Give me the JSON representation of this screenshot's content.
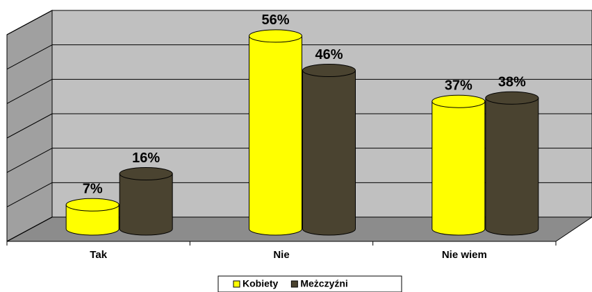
{
  "chart_data": {
    "type": "bar3d",
    "categories": [
      "Tak",
      "Nie",
      "Nie wiem"
    ],
    "series": [
      {
        "name": "Kobiety",
        "color": "#ffff00",
        "values": [
          7,
          56,
          37
        ],
        "value_labels": [
          "7%",
          "56%",
          "37%"
        ]
      },
      {
        "name": "Meżczyźni",
        "color": "#4a4330",
        "values": [
          16,
          46,
          38
        ],
        "value_labels": [
          "16%",
          "46%",
          "38%"
        ]
      }
    ],
    "ylim": [
      0,
      60
    ],
    "yticks": [
      0,
      10,
      20,
      30,
      40,
      50,
      60
    ],
    "grid": true,
    "legend": "bottom"
  }
}
